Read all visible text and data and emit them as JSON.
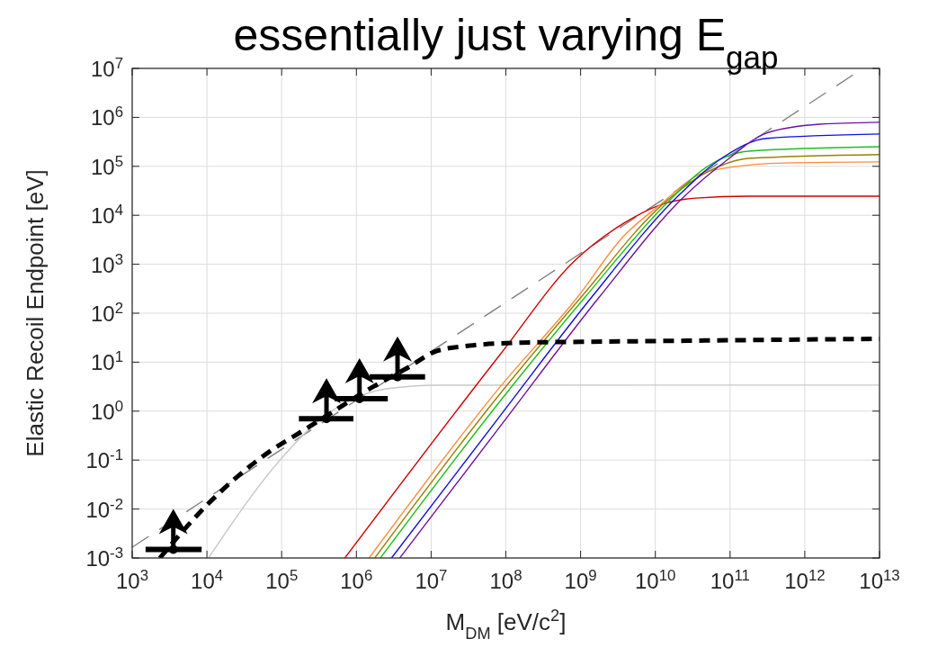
{
  "chart_data": {
    "type": "line",
    "title": "essentially just varying E$_{gap}$",
    "xlabel": "M$_{DM}$ [eV/c$^{2}$]",
    "ylabel": "Elastic Recoil Endpoint [eV]",
    "log": "xy",
    "grid": true,
    "legend": false,
    "xlim": [
      1000,
      10000000000000
    ],
    "ylim": [
      0.001,
      10000000
    ],
    "xticks": [
      {
        "value": 1000,
        "label": "10$^{3}$"
      },
      {
        "value": 10000,
        "label": "10$^{4}$"
      },
      {
        "value": 100000,
        "label": "10$^{5}$"
      },
      {
        "value": 1000000,
        "label": "10$^{6}$"
      },
      {
        "value": 10000000,
        "label": "10$^{7}$"
      },
      {
        "value": 100000000,
        "label": "10$^{8}$"
      },
      {
        "value": 1000000000,
        "label": "10$^{9}$"
      },
      {
        "value": 10000000000,
        "label": "10$^{10}$"
      },
      {
        "value": 100000000000,
        "label": "10$^{11}$"
      },
      {
        "value": 1000000000000,
        "label": "10$^{12}$"
      },
      {
        "value": 10000000000000,
        "label": "10$^{13}$"
      }
    ],
    "yticks": [
      {
        "value": 0.001,
        "label": "10$^{-3}$"
      },
      {
        "value": 0.01,
        "label": "10$^{-2}$"
      },
      {
        "value": 0.1,
        "label": "10$^{-1}$"
      },
      {
        "value": 1,
        "label": "10$^{0}$"
      },
      {
        "value": 10,
        "label": "10$^{1}$"
      },
      {
        "value": 100,
        "label": "10$^{2}$"
      },
      {
        "value": 1000,
        "label": "10$^{3}$"
      },
      {
        "value": 10000,
        "label": "10$^{4}$"
      },
      {
        "value": 100000,
        "label": "10$^{5}$"
      },
      {
        "value": 1000000,
        "label": "10$^{6}$"
      },
      {
        "value": 10000000,
        "label": "10$^{7}$"
      }
    ],
    "series": [
      {
        "color": "#808080",
        "line_style": "dashed",
        "x": [
          1000,
          6000000000000
        ],
        "values": [
          0.00166,
          10000000
        ]
      },
      {
        "color": "#c8c8c8",
        "x": [
          10470,
          97700,
          288000,
          776000,
          2630000,
          12000000,
          10000000000000
        ],
        "values": [
          0.001,
          0.105,
          0.575,
          1.58,
          2.88,
          3.39,
          3.4
        ]
      },
      {
        "color": "#d40000",
        "x": [
          700000,
          83200000,
          832000000,
          3800000000,
          11500000000,
          34700000000,
          178000000000,
          10000000000000
        ],
        "values": [
          0.001,
          14.1,
          1175,
          6900,
          16200,
          22400,
          24500,
          24500
        ]
      },
      {
        "color": "#ff8c3a",
        "x": [
          1480000,
          83200000,
          912000000,
          3800000000,
          11500000000,
          38000000000,
          102000000000,
          537000000000,
          10000000000000
        ],
        "values": [
          0.001,
          3.09,
          214,
          3800,
          16200,
          67600,
          95500,
          117000,
          123000
        ]
      },
      {
        "color": "#9a8000",
        "x": [
          1760000,
          83200000,
          1020000000,
          12900000000,
          47900000000,
          178000000000,
          10000000000000
        ],
        "values": [
          0.001,
          2.24,
          214,
          17400,
          74100,
          145000,
          174000
        ]
      },
      {
        "color": "#1fbf1f",
        "x": [
          2090000,
          83200000,
          1150000000,
          14100000000,
          47900000000,
          178000000000,
          10000000000000
        ],
        "values": [
          0.001,
          1.58,
          214,
          17400,
          95500,
          204000,
          251000
        ]
      },
      {
        "color": "#1010e0",
        "x": [
          2950000,
          83200000,
          1410000000,
          20000000000,
          83200000000,
          309000000000,
          10000000000000
        ],
        "values": [
          0.001,
          0.79,
          214,
          24500,
          158000,
          372000,
          457000
        ]
      },
      {
        "color": "#7010a0",
        "x": [
          3800000,
          83200000,
          1780000000,
          24500000000,
          91200000000,
          309000000000,
          1580000000000,
          10000000000000
        ],
        "values": [
          0.001,
          0.48,
          214,
          24500,
          135000,
          479000,
          724000,
          794000
        ]
      },
      {
        "color": "#000000",
        "line_style": "dashed",
        "x": [
          2340,
          9800,
          50000,
          234000,
          562000,
          1350000,
          5000000,
          12000000,
          36000000,
          160000000,
          1000000000,
          10000000000,
          100000000000,
          1000000000000,
          10000000000000
        ],
        "values": [
          0.001,
          0.0117,
          0.105,
          0.48,
          1.12,
          2.6,
          7.9,
          17,
          22,
          25,
          26,
          27,
          28,
          29,
          30
        ]
      },
      {
        "type": "scatter",
        "marker": "circle",
        "color": "#000000",
        "x": [
          3550,
          398000,
          1100000,
          3550000
        ],
        "values": [
          0.0015,
          0.7,
          1.8,
          5
        ],
        "xerrors": [
          [
            1510,
            8500
          ],
          [
            170000,
            912000
          ],
          [
            513000,
            2630000
          ],
          [
            1510000,
            8300000
          ]
        ]
      }
    ]
  }
}
